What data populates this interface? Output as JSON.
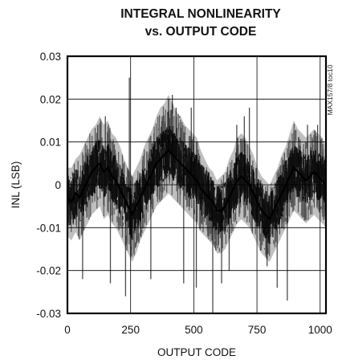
{
  "chart_data": {
    "type": "line",
    "title_lines": [
      "INTEGRAL NONLINEARITY",
      "vs. OUTPUT CODE"
    ],
    "xlabel": "OUTPUT CODE",
    "ylabel": "INL (LSB)",
    "side_note": "MAX157/8 toc10",
    "xlim": [
      0,
      1023
    ],
    "ylim": [
      -0.03,
      0.03
    ],
    "x_ticks": [
      0,
      250,
      500,
      750,
      1000
    ],
    "x_tick_labels": [
      "0",
      "250",
      "500",
      "750",
      "1000"
    ],
    "y_ticks": [
      0.03,
      0.02,
      0.01,
      0,
      -0.01,
      -0.02,
      -0.03
    ],
    "y_tick_labels": [
      "0.03",
      "0.02",
      "0.01",
      "0",
      "-0.01",
      "-0.02",
      "-0.03"
    ],
    "grid": true,
    "series_color": "#000000",
    "series": [
      {
        "x_start": 0,
        "x_step": 16,
        "center": [
          -0.003,
          -0.004,
          -0.002,
          -0.003,
          -0.001,
          0.001,
          0.003,
          0.004,
          0.005,
          0.003,
          0.004,
          0.002,
          0.001,
          -0.001,
          -0.003,
          -0.005,
          -0.007,
          -0.005,
          -0.003,
          -0.001,
          0.001,
          0.003,
          0.005,
          0.006,
          0.007,
          0.008,
          0.007,
          0.006,
          0.005,
          0.004,
          0.003,
          0.002,
          0.001,
          -0.001,
          -0.002,
          -0.003,
          -0.004,
          -0.006,
          -0.006,
          -0.005,
          -0.003,
          -0.001,
          0.001,
          0.002,
          0.001,
          0.0,
          -0.002,
          -0.004,
          -0.006,
          -0.007,
          -0.008,
          -0.006,
          -0.004,
          -0.002,
          0.0,
          0.002,
          0.004,
          0.003,
          0.002,
          0.001,
          0.002,
          0.003,
          0.002,
          0.001,
          0.0
        ],
        "upper": [
          0.004,
          0.004,
          0.006,
          0.007,
          0.009,
          0.011,
          0.013,
          0.014,
          0.016,
          0.014,
          0.015,
          0.012,
          0.011,
          0.009,
          0.006,
          0.004,
          0.002,
          0.004,
          0.006,
          0.009,
          0.011,
          0.013,
          0.016,
          0.018,
          0.019,
          0.021,
          0.019,
          0.017,
          0.016,
          0.014,
          0.013,
          0.012,
          0.011,
          0.008,
          0.006,
          0.004,
          0.003,
          0.001,
          0.002,
          0.003,
          0.006,
          0.008,
          0.011,
          0.012,
          0.011,
          0.009,
          0.007,
          0.004,
          0.002,
          0.001,
          0.0,
          0.002,
          0.004,
          0.007,
          0.009,
          0.012,
          0.015,
          0.013,
          0.012,
          0.011,
          0.012,
          0.013,
          0.012,
          0.011,
          0.009
        ],
        "lower": [
          -0.012,
          -0.013,
          -0.011,
          -0.013,
          -0.011,
          -0.009,
          -0.007,
          -0.006,
          -0.005,
          -0.008,
          -0.007,
          -0.009,
          -0.01,
          -0.012,
          -0.014,
          -0.016,
          -0.018,
          -0.016,
          -0.013,
          -0.011,
          -0.009,
          -0.007,
          -0.005,
          -0.004,
          -0.003,
          -0.002,
          -0.003,
          -0.004,
          -0.005,
          -0.006,
          -0.007,
          -0.008,
          -0.009,
          -0.011,
          -0.012,
          -0.013,
          -0.014,
          -0.016,
          -0.016,
          -0.015,
          -0.013,
          -0.011,
          -0.009,
          -0.008,
          -0.009,
          -0.01,
          -0.012,
          -0.014,
          -0.016,
          -0.017,
          -0.018,
          -0.016,
          -0.014,
          -0.012,
          -0.01,
          -0.008,
          -0.006,
          -0.007,
          -0.008,
          -0.009,
          -0.008,
          -0.007,
          -0.008,
          -0.009,
          -0.01
        ],
        "peaks": [
          [
            60,
            -0.022
          ],
          [
            120,
            0.014
          ],
          [
            150,
            0.016
          ],
          [
            170,
            -0.023
          ],
          [
            230,
            -0.026
          ],
          [
            245,
            0.025
          ],
          [
            290,
            -0.012
          ],
          [
            330,
            -0.022
          ],
          [
            375,
            0.016
          ],
          [
            400,
            0.02
          ],
          [
            415,
            0.021
          ],
          [
            430,
            0.018
          ],
          [
            460,
            -0.023
          ],
          [
            490,
            0.018
          ],
          [
            510,
            -0.024
          ],
          [
            560,
            0.003
          ],
          [
            575,
            -0.03
          ],
          [
            610,
            -0.023
          ],
          [
            640,
            -0.02
          ],
          [
            670,
            0.014
          ],
          [
            700,
            0.016
          ],
          [
            720,
            0.018
          ],
          [
            790,
            -0.019
          ],
          [
            830,
            -0.024
          ],
          [
            870,
            -0.027
          ],
          [
            915,
            0.011
          ],
          [
            950,
            0.014
          ],
          [
            990,
            0.014
          ]
        ]
      }
    ]
  }
}
